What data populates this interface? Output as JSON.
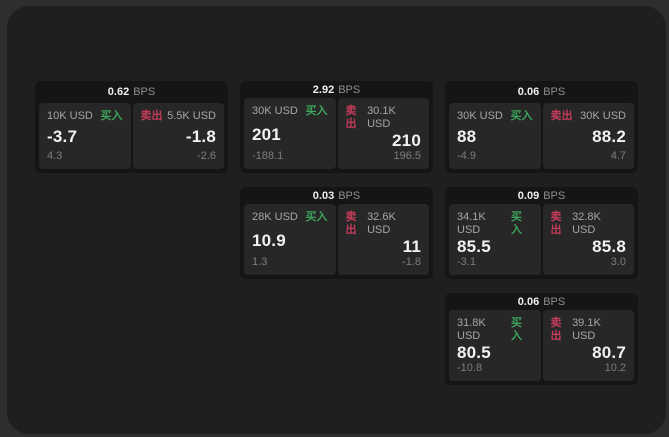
{
  "colors": {
    "outer_background": "#2e2e2e",
    "window_background": "#1f1f1f",
    "card_background": "#151515",
    "tile_background": "#272727",
    "buy_green": "#3ca35a",
    "sell_red": "#c43b5b",
    "text_primary": "#f2f2f2",
    "text_secondary": "#a6a6a6",
    "text_muted": "#7d7d7d"
  },
  "labels": {
    "bps": "BPS",
    "buy": "买入",
    "sell": "卖出"
  },
  "cards": [
    {
      "bps": "0.62",
      "grid": {
        "row": 1,
        "col": 1
      },
      "buy": {
        "amount": "10K USD",
        "price": "-3.7",
        "delta": "4.3"
      },
      "sell": {
        "amount": "5.5K USD",
        "price": "-1.8",
        "delta": "-2.6"
      }
    },
    {
      "bps": "2.92",
      "grid": {
        "row": 1,
        "col": 2
      },
      "buy": {
        "amount": "30K USD",
        "price": "201",
        "delta": "-188.1"
      },
      "sell": {
        "amount": "30.1K USD",
        "price": "210",
        "delta": "196.5"
      }
    },
    {
      "bps": "0.06",
      "grid": {
        "row": 1,
        "col": 3
      },
      "buy": {
        "amount": "30K USD",
        "price": "88",
        "delta": "-4.9"
      },
      "sell": {
        "amount": "30K USD",
        "price": "88.2",
        "delta": "4.7"
      }
    },
    {
      "bps": "0.03",
      "grid": {
        "row": 2,
        "col": 2
      },
      "buy": {
        "amount": "28K USD",
        "price": "10.9",
        "delta": "1.3"
      },
      "sell": {
        "amount": "32.6K USD",
        "price": "11",
        "delta": "-1.8"
      }
    },
    {
      "bps": "0.09",
      "grid": {
        "row": 2,
        "col": 3
      },
      "buy": {
        "amount": "34.1K USD",
        "price": "85.5",
        "delta": "-3.1"
      },
      "sell": {
        "amount": "32.8K USD",
        "price": "85.8",
        "delta": "3.0"
      }
    },
    {
      "bps": "0.06",
      "grid": {
        "row": 3,
        "col": 3
      },
      "buy": {
        "amount": "31.8K USD",
        "price": "80.5",
        "delta": "-10.8"
      },
      "sell": {
        "amount": "39.1K USD",
        "price": "80.7",
        "delta": "10.2"
      }
    }
  ]
}
